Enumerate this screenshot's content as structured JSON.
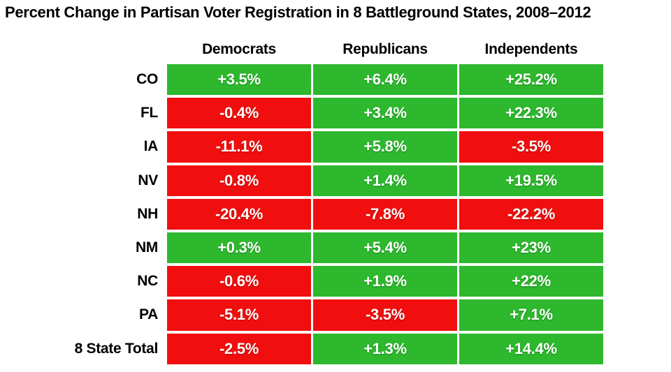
{
  "title": "Percent Change in Partisan Voter Registration in 8 Battleground States, 2008–2012",
  "chart_data": {
    "type": "table",
    "title": "Percent Change in Partisan Voter Registration in 8 Battleground States, 2008–2012",
    "columns": [
      "Democrats",
      "Republicans",
      "Independents"
    ],
    "rows": [
      {
        "label": "CO",
        "display": [
          "+3.5%",
          "+6.4%",
          "+25.2%"
        ],
        "values": [
          3.5,
          6.4,
          25.2
        ]
      },
      {
        "label": "FL",
        "display": [
          "-0.4%",
          "+3.4%",
          "+22.3%"
        ],
        "values": [
          -0.4,
          3.4,
          22.3
        ]
      },
      {
        "label": "IA",
        "display": [
          "-11.1%",
          "+5.8%",
          "-3.5%"
        ],
        "values": [
          -11.1,
          5.8,
          -3.5
        ]
      },
      {
        "label": "NV",
        "display": [
          "-0.8%",
          "+1.4%",
          "+19.5%"
        ],
        "values": [
          -0.8,
          1.4,
          19.5
        ]
      },
      {
        "label": "NH",
        "display": [
          "-20.4%",
          "-7.8%",
          "-22.2%"
        ],
        "values": [
          -20.4,
          -7.8,
          -22.2
        ]
      },
      {
        "label": "NM",
        "display": [
          "+0.3%",
          "+5.4%",
          "+23%"
        ],
        "values": [
          0.3,
          5.4,
          23
        ]
      },
      {
        "label": "NC",
        "display": [
          "-0.6%",
          "+1.9%",
          "+22%"
        ],
        "values": [
          -0.6,
          1.9,
          22
        ]
      },
      {
        "label": "PA",
        "display": [
          "-5.1%",
          "-3.5%",
          "+7.1%"
        ],
        "values": [
          -5.1,
          -3.5,
          7.1
        ]
      },
      {
        "label": "8 State Total",
        "display": [
          "-2.5%",
          "+1.3%",
          "+14.4%"
        ],
        "values": [
          -2.5,
          1.3,
          14.4
        ]
      }
    ],
    "legend": "green = gain, red = loss",
    "colors": {
      "positive": "#2db82d",
      "negative": "#f10e0e",
      "cell_text": "#ffffff",
      "heading_text": "#000000",
      "background": "#ffffff"
    }
  }
}
